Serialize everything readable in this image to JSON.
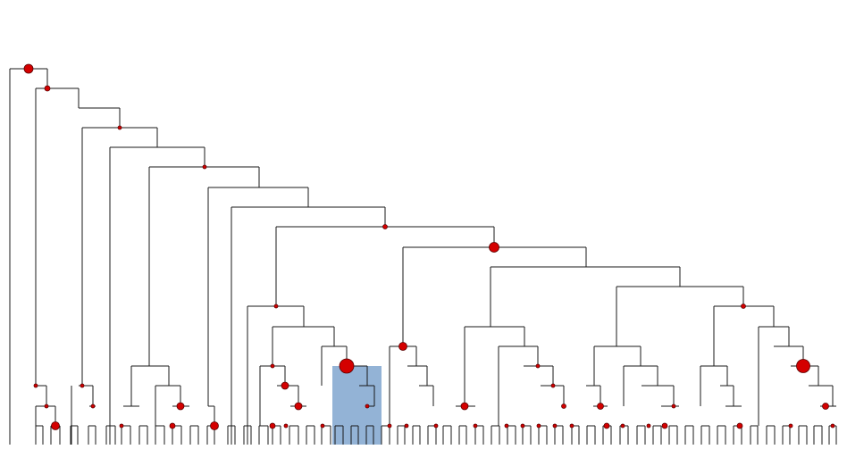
{
  "colors": {
    "background": "#ffffff",
    "edge": "#1a1a1a",
    "node_marker": "#d40000",
    "selection_fill": "#6f9ac8"
  },
  "tree": {
    "type": "dendrogram",
    "leaf_count": 48,
    "selection": {
      "present": true
    }
  }
}
